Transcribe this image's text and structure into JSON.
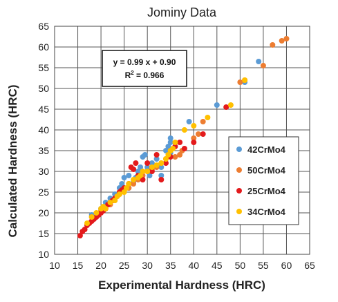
{
  "chart_data": {
    "type": "scatter",
    "title": "Jominy Data",
    "xlabel": "Experimental Hardness (HRC)",
    "ylabel": "Calculated Hardness (HRC)",
    "xlim": [
      10,
      65
    ],
    "ylim": [
      10,
      65
    ],
    "xticks": [
      10,
      15,
      20,
      25,
      30,
      35,
      40,
      45,
      50,
      55,
      60,
      65
    ],
    "yticks": [
      10,
      15,
      20,
      25,
      30,
      35,
      40,
      45,
      50,
      55,
      60,
      65
    ],
    "grid": true,
    "legend_position": "lower-right",
    "annotation": {
      "equation": "y = 0.99 x + 0.90",
      "r2_prefix": "R",
      "r2_sup": "2",
      "r2_value": " = 0.966"
    },
    "series": [
      {
        "name": "42CrMo4",
        "color": "#5b9bd5",
        "points": [
          [
            18,
            19.5
          ],
          [
            20,
            21
          ],
          [
            21,
            22.5
          ],
          [
            22,
            23.5
          ],
          [
            23,
            24.5
          ],
          [
            24,
            26
          ],
          [
            24.5,
            27
          ],
          [
            25,
            28.5
          ],
          [
            26,
            29
          ],
          [
            26,
            26
          ],
          [
            27,
            27.5
          ],
          [
            27.5,
            28.5
          ],
          [
            28,
            30
          ],
          [
            28.5,
            31
          ],
          [
            29,
            33.5
          ],
          [
            29.5,
            34
          ],
          [
            30,
            31
          ],
          [
            30.5,
            29
          ],
          [
            31,
            32
          ],
          [
            32,
            33
          ],
          [
            33,
            29
          ],
          [
            33,
            31
          ],
          [
            34,
            35
          ],
          [
            34.5,
            36
          ],
          [
            35,
            37
          ],
          [
            35,
            38
          ],
          [
            35,
            34.5
          ],
          [
            39,
            42
          ],
          [
            45,
            46
          ],
          [
            51,
            51.5
          ],
          [
            54,
            56.5
          ]
        ]
      },
      {
        "name": "50CrMo4",
        "color": "#ed7d31",
        "points": [
          [
            18,
            19
          ],
          [
            20,
            20.5
          ],
          [
            21,
            21
          ],
          [
            22,
            22
          ],
          [
            23,
            23
          ],
          [
            24,
            24.5
          ],
          [
            25,
            25.5
          ],
          [
            26,
            26
          ],
          [
            27,
            27
          ],
          [
            28,
            28
          ],
          [
            29,
            29
          ],
          [
            30,
            30
          ],
          [
            31,
            30.5
          ],
          [
            32,
            31
          ],
          [
            33,
            32
          ],
          [
            34,
            33
          ],
          [
            35,
            35
          ],
          [
            36,
            33.5
          ],
          [
            37,
            34
          ],
          [
            37.5,
            35
          ],
          [
            40,
            38
          ],
          [
            41,
            39
          ],
          [
            42,
            42
          ],
          [
            50,
            51.5
          ],
          [
            51,
            52
          ],
          [
            55,
            55.5
          ],
          [
            57,
            60.5
          ],
          [
            59,
            61.5
          ],
          [
            60,
            62
          ]
        ]
      },
      {
        "name": "25CrMo4",
        "color": "#e31a1c",
        "points": [
          [
            15.5,
            14.5
          ],
          [
            16,
            15.5
          ],
          [
            16.5,
            16
          ],
          [
            17,
            17
          ],
          [
            17.5,
            17.5
          ],
          [
            18,
            18
          ],
          [
            18.5,
            18.5
          ],
          [
            19,
            19
          ],
          [
            19.5,
            19.5
          ],
          [
            20,
            20
          ],
          [
            20.5,
            20.5
          ],
          [
            21,
            21
          ],
          [
            21.5,
            22
          ],
          [
            22,
            22.5
          ],
          [
            22.5,
            23
          ],
          [
            23,
            23.5
          ],
          [
            23.5,
            24
          ],
          [
            24,
            25
          ],
          [
            24.5,
            25.5
          ],
          [
            25,
            26
          ],
          [
            26,
            27
          ],
          [
            26.5,
            31
          ],
          [
            27,
            30.5
          ],
          [
            27.5,
            32
          ],
          [
            28,
            29
          ],
          [
            29,
            28
          ],
          [
            30,
            32
          ],
          [
            31,
            30
          ],
          [
            32,
            34
          ],
          [
            33,
            28
          ],
          [
            34,
            32
          ],
          [
            35,
            33.5
          ],
          [
            36,
            36
          ],
          [
            37,
            37
          ],
          [
            38,
            35.5
          ],
          [
            40,
            37
          ],
          [
            42,
            39
          ],
          [
            47,
            45.5
          ]
        ]
      },
      {
        "name": "34CrMo4",
        "color": "#ffc000",
        "points": [
          [
            17,
            17.5
          ],
          [
            18,
            19
          ],
          [
            19,
            20
          ],
          [
            20,
            21
          ],
          [
            20.5,
            21.5
          ],
          [
            21,
            21
          ],
          [
            22,
            22.5
          ],
          [
            23,
            23
          ],
          [
            23.5,
            24
          ],
          [
            24,
            24.5
          ],
          [
            25,
            25
          ],
          [
            25.5,
            26
          ],
          [
            26,
            27
          ],
          [
            27,
            28
          ],
          [
            28,
            28.5
          ],
          [
            28.5,
            29
          ],
          [
            29,
            30
          ],
          [
            30,
            30
          ],
          [
            31,
            31
          ],
          [
            32,
            31.5
          ],
          [
            33,
            32
          ],
          [
            34,
            33
          ],
          [
            34.5,
            34
          ],
          [
            35,
            35
          ],
          [
            35.5,
            35.5
          ],
          [
            36,
            37
          ],
          [
            38,
            40
          ],
          [
            40,
            41
          ],
          [
            43,
            43
          ],
          [
            48,
            46
          ],
          [
            51,
            52
          ]
        ]
      }
    ]
  }
}
